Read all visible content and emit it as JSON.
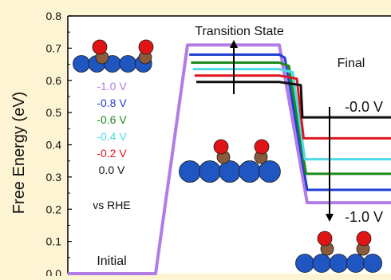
{
  "chart_data": {
    "type": "line",
    "ylabel": "Free Energy (eV)",
    "ylim": [
      0.0,
      0.8
    ],
    "y_ticks": [
      "0.8",
      "0.7",
      "0.6",
      "0.5",
      "0.4",
      "0.3",
      "0.2",
      "0.1",
      "0.0"
    ],
    "states": [
      "Initial",
      "Transition State",
      "Final"
    ],
    "reference": "vs RHE",
    "arrow_labels": {
      "top": "-0.0 V",
      "bottom": "-1.0 V"
    },
    "series": [
      {
        "name": "-1.0 V",
        "color": "#b27ce6",
        "values": [
          0.0,
          0.71,
          0.22
        ]
      },
      {
        "name": "-0.8 V",
        "color": "#1f3fd1",
        "values": [
          0.0,
          0.68,
          0.26
        ]
      },
      {
        "name": "-0.6 V",
        "color": "#1a8a1a",
        "values": [
          0.0,
          0.655,
          0.31
        ]
      },
      {
        "name": "-0.4 V",
        "color": "#4fd9e6",
        "values": [
          0.0,
          0.635,
          0.355
        ]
      },
      {
        "name": "-0.2 V",
        "color": "#e0141e",
        "values": [
          0.0,
          0.615,
          0.42
        ]
      },
      {
        "name": "0.0 V",
        "color": "#111111",
        "values": [
          0.0,
          0.595,
          0.485
        ]
      }
    ]
  }
}
